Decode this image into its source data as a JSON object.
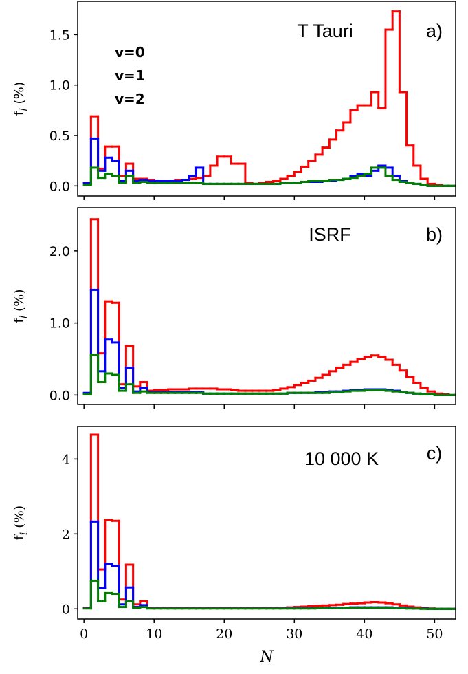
{
  "chart_data": [
    {
      "type": "step",
      "step": "post",
      "title": "T Tauri",
      "panel_label": "a)",
      "ylabel": "f",
      "ylabel_subscript": "i",
      "ylabel_unit": "(%)",
      "legend": true,
      "xtick_labels": false,
      "x": [
        0,
        1,
        2,
        3,
        4,
        5,
        6,
        7,
        8,
        9,
        10,
        11,
        12,
        13,
        14,
        15,
        16,
        17,
        18,
        19,
        20,
        21,
        22,
        23,
        24,
        25,
        26,
        27,
        28,
        29,
        30,
        31,
        32,
        33,
        34,
        35,
        36,
        37,
        38,
        39,
        40,
        41,
        42,
        43,
        44,
        45,
        46,
        47,
        48,
        49,
        50,
        51,
        52,
        53
      ],
      "xlim": [
        -0.9,
        53
      ],
      "xticks": [
        0,
        10,
        20,
        30,
        40,
        50
      ],
      "ylim": [
        -0.1,
        1.83
      ],
      "yticks": [
        {
          "value": 0,
          "label": "0.0"
        },
        {
          "value": 0.5,
          "label": "0.5"
        },
        {
          "value": 1,
          "label": "1.0"
        },
        {
          "value": 1.5,
          "label": "1.5"
        }
      ],
      "series": [
        {
          "name": "v=0",
          "color": "#ff0000",
          "values": [
            0.03,
            0.69,
            0.17,
            0.39,
            0.39,
            0.1,
            0.22,
            0.07,
            0.07,
            0.06,
            0.05,
            0.05,
            0.05,
            0.06,
            0.06,
            0.07,
            0.08,
            0.1,
            0.2,
            0.29,
            0.29,
            0.22,
            0.22,
            0.03,
            0.02,
            0.03,
            0.04,
            0.05,
            0.07,
            0.1,
            0.14,
            0.19,
            0.25,
            0.31,
            0.38,
            0.46,
            0.55,
            0.63,
            0.75,
            0.8,
            0.8,
            0.93,
            0.77,
            1.55,
            1.73,
            0.93,
            0.4,
            0.2,
            0.07,
            0.02,
            0.01,
            0,
            0,
            0
          ]
        },
        {
          "name": "v=1",
          "color": "#0000ff",
          "values": [
            0.03,
            0.47,
            0.15,
            0.28,
            0.25,
            0.05,
            0.15,
            0.05,
            0.06,
            0.05,
            0.05,
            0.05,
            0.05,
            0.05,
            0.06,
            0.1,
            0.18,
            0.02,
            0.02,
            0.02,
            0.02,
            0.02,
            0.02,
            0.02,
            0.02,
            0.02,
            0.02,
            0.02,
            0.03,
            0.03,
            0.03,
            0.04,
            0.04,
            0.04,
            0.05,
            0.05,
            0.06,
            0.07,
            0.1,
            0.12,
            0.1,
            0.15,
            0.2,
            0.18,
            0.1,
            0.05,
            0.03,
            0.02,
            0.01,
            0,
            0,
            0,
            0,
            0
          ]
        },
        {
          "name": "v=2",
          "color": "#008000",
          "values": [
            0.01,
            0.18,
            0.08,
            0.12,
            0.1,
            0.03,
            0.1,
            0.03,
            0.04,
            0.03,
            0.03,
            0.03,
            0.03,
            0.03,
            0.03,
            0.03,
            0.03,
            0.02,
            0.02,
            0.02,
            0.02,
            0.02,
            0.02,
            0.02,
            0.02,
            0.02,
            0.02,
            0.02,
            0.03,
            0.03,
            0.03,
            0.04,
            0.05,
            0.05,
            0.05,
            0.06,
            0.06,
            0.07,
            0.08,
            0.1,
            0.12,
            0.18,
            0.18,
            0.1,
            0.06,
            0.04,
            0.03,
            0.02,
            0.01,
            0,
            0,
            0,
            0,
            0
          ]
        }
      ]
    },
    {
      "type": "step",
      "step": "post",
      "title": "ISRF",
      "panel_label": "b)",
      "ylabel": "f",
      "ylabel_subscript": "i",
      "ylabel_unit": "(%)",
      "legend": false,
      "xtick_labels": false,
      "x": [
        0,
        1,
        2,
        3,
        4,
        5,
        6,
        7,
        8,
        9,
        10,
        11,
        12,
        13,
        14,
        15,
        16,
        17,
        18,
        19,
        20,
        21,
        22,
        23,
        24,
        25,
        26,
        27,
        28,
        29,
        30,
        31,
        32,
        33,
        34,
        35,
        36,
        37,
        38,
        39,
        40,
        41,
        42,
        43,
        44,
        45,
        46,
        47,
        48,
        49,
        50,
        51,
        52,
        53
      ],
      "xlim": [
        -0.9,
        53
      ],
      "xticks": [
        0,
        10,
        20,
        30,
        40,
        50
      ],
      "ylim": [
        -0.13,
        2.6
      ],
      "yticks": [
        {
          "value": 0,
          "label": "0.0"
        },
        {
          "value": 1,
          "label": "1.0"
        },
        {
          "value": 2,
          "label": "2.0"
        }
      ],
      "series": [
        {
          "color": "#ff0000",
          "values": [
            0.02,
            2.44,
            0.58,
            1.3,
            1.28,
            0.15,
            0.68,
            0.12,
            0.18,
            0.06,
            0.07,
            0.07,
            0.08,
            0.08,
            0.08,
            0.09,
            0.09,
            0.09,
            0.09,
            0.08,
            0.08,
            0.07,
            0.06,
            0.06,
            0.06,
            0.06,
            0.06,
            0.07,
            0.09,
            0.11,
            0.14,
            0.17,
            0.2,
            0.24,
            0.28,
            0.33,
            0.38,
            0.42,
            0.46,
            0.5,
            0.53,
            0.55,
            0.53,
            0.49,
            0.42,
            0.34,
            0.25,
            0.17,
            0.1,
            0.05,
            0.02,
            0.01,
            0,
            0
          ]
        },
        {
          "color": "#0000ff",
          "values": [
            0.03,
            1.46,
            0.33,
            0.77,
            0.73,
            0.1,
            0.38,
            0.05,
            0.1,
            0.04,
            0.04,
            0.04,
            0.04,
            0.04,
            0.04,
            0.04,
            0.04,
            0.02,
            0.02,
            0.02,
            0.02,
            0.02,
            0.02,
            0.02,
            0.02,
            0.02,
            0.02,
            0.02,
            0.02,
            0.03,
            0.03,
            0.03,
            0.03,
            0.04,
            0.04,
            0.05,
            0.05,
            0.06,
            0.07,
            0.07,
            0.08,
            0.08,
            0.08,
            0.07,
            0.06,
            0.04,
            0.03,
            0.02,
            0.01,
            0.01,
            0,
            0,
            0,
            0
          ]
        },
        {
          "color": "#008000",
          "values": [
            0.01,
            0.56,
            0.18,
            0.3,
            0.28,
            0.06,
            0.15,
            0.03,
            0.05,
            0.03,
            0.03,
            0.03,
            0.03,
            0.03,
            0.03,
            0.03,
            0.03,
            0.02,
            0.02,
            0.02,
            0.02,
            0.02,
            0.02,
            0.02,
            0.02,
            0.02,
            0.02,
            0.02,
            0.02,
            0.03,
            0.03,
            0.03,
            0.03,
            0.03,
            0.03,
            0.04,
            0.04,
            0.05,
            0.06,
            0.06,
            0.07,
            0.07,
            0.07,
            0.06,
            0.05,
            0.04,
            0.03,
            0.02,
            0.01,
            0.01,
            0,
            0,
            0,
            0
          ]
        }
      ]
    },
    {
      "type": "step",
      "step": "post",
      "title": "10 000 K",
      "panel_label": "c)",
      "ylabel": "f",
      "ylabel_subscript": "i",
      "ylabel_unit": "(%)",
      "xlabel": "N",
      "legend": false,
      "xtick_labels": true,
      "x": [
        0,
        1,
        2,
        3,
        4,
        5,
        6,
        7,
        8,
        9,
        10,
        11,
        12,
        13,
        14,
        15,
        16,
        17,
        18,
        19,
        20,
        21,
        22,
        23,
        24,
        25,
        26,
        27,
        28,
        29,
        30,
        31,
        32,
        33,
        34,
        35,
        36,
        37,
        38,
        39,
        40,
        41,
        42,
        43,
        44,
        45,
        46,
        47,
        48,
        49,
        50,
        51,
        52,
        53
      ],
      "xlim": [
        -0.9,
        53
      ],
      "xticks": [
        0,
        10,
        20,
        30,
        40,
        50
      ],
      "ylim": [
        -0.27,
        4.87
      ],
      "yticks": [
        0,
        2,
        4
      ],
      "series": [
        {
          "color": "#ff0000",
          "values": [
            0.03,
            4.65,
            1.05,
            2.37,
            2.35,
            0.25,
            1.18,
            0.12,
            0.2,
            0.03,
            0.03,
            0.03,
            0.03,
            0.03,
            0.03,
            0.03,
            0.03,
            0.03,
            0.03,
            0.03,
            0.03,
            0.03,
            0.03,
            0.03,
            0.03,
            0.03,
            0.03,
            0.03,
            0.03,
            0.04,
            0.05,
            0.06,
            0.07,
            0.08,
            0.09,
            0.1,
            0.11,
            0.13,
            0.14,
            0.15,
            0.17,
            0.18,
            0.17,
            0.15,
            0.12,
            0.09,
            0.06,
            0.04,
            0.02,
            0.01,
            0,
            0,
            0,
            0
          ]
        },
        {
          "color": "#0000ff",
          "values": [
            0.02,
            2.33,
            0.55,
            1.2,
            1.15,
            0.12,
            0.57,
            0.05,
            0.1,
            0.02,
            0.02,
            0.02,
            0.02,
            0.02,
            0.02,
            0.02,
            0.02,
            0.02,
            0.02,
            0.02,
            0.02,
            0.02,
            0.02,
            0.02,
            0.02,
            0.02,
            0.02,
            0.02,
            0.02,
            0.02,
            0.02,
            0.02,
            0.02,
            0.02,
            0.02,
            0.03,
            0.03,
            0.03,
            0.04,
            0.04,
            0.04,
            0.04,
            0.04,
            0.04,
            0.03,
            0.03,
            0.02,
            0.01,
            0.01,
            0,
            0,
            0,
            0,
            0
          ]
        },
        {
          "color": "#008000",
          "values": [
            0.01,
            0.75,
            0.2,
            0.42,
            0.4,
            0.05,
            0.2,
            0.03,
            0.05,
            0.01,
            0.01,
            0.01,
            0.01,
            0.01,
            0.01,
            0.01,
            0.01,
            0.01,
            0.01,
            0.01,
            0.01,
            0.01,
            0.01,
            0.01,
            0.01,
            0.01,
            0.01,
            0.01,
            0.01,
            0.01,
            0.01,
            0.01,
            0.01,
            0.02,
            0.02,
            0.02,
            0.02,
            0.03,
            0.03,
            0.03,
            0.03,
            0.03,
            0.03,
            0.03,
            0.02,
            0.02,
            0.01,
            0.01,
            0,
            0,
            0,
            0,
            0,
            0
          ]
        }
      ]
    }
  ]
}
